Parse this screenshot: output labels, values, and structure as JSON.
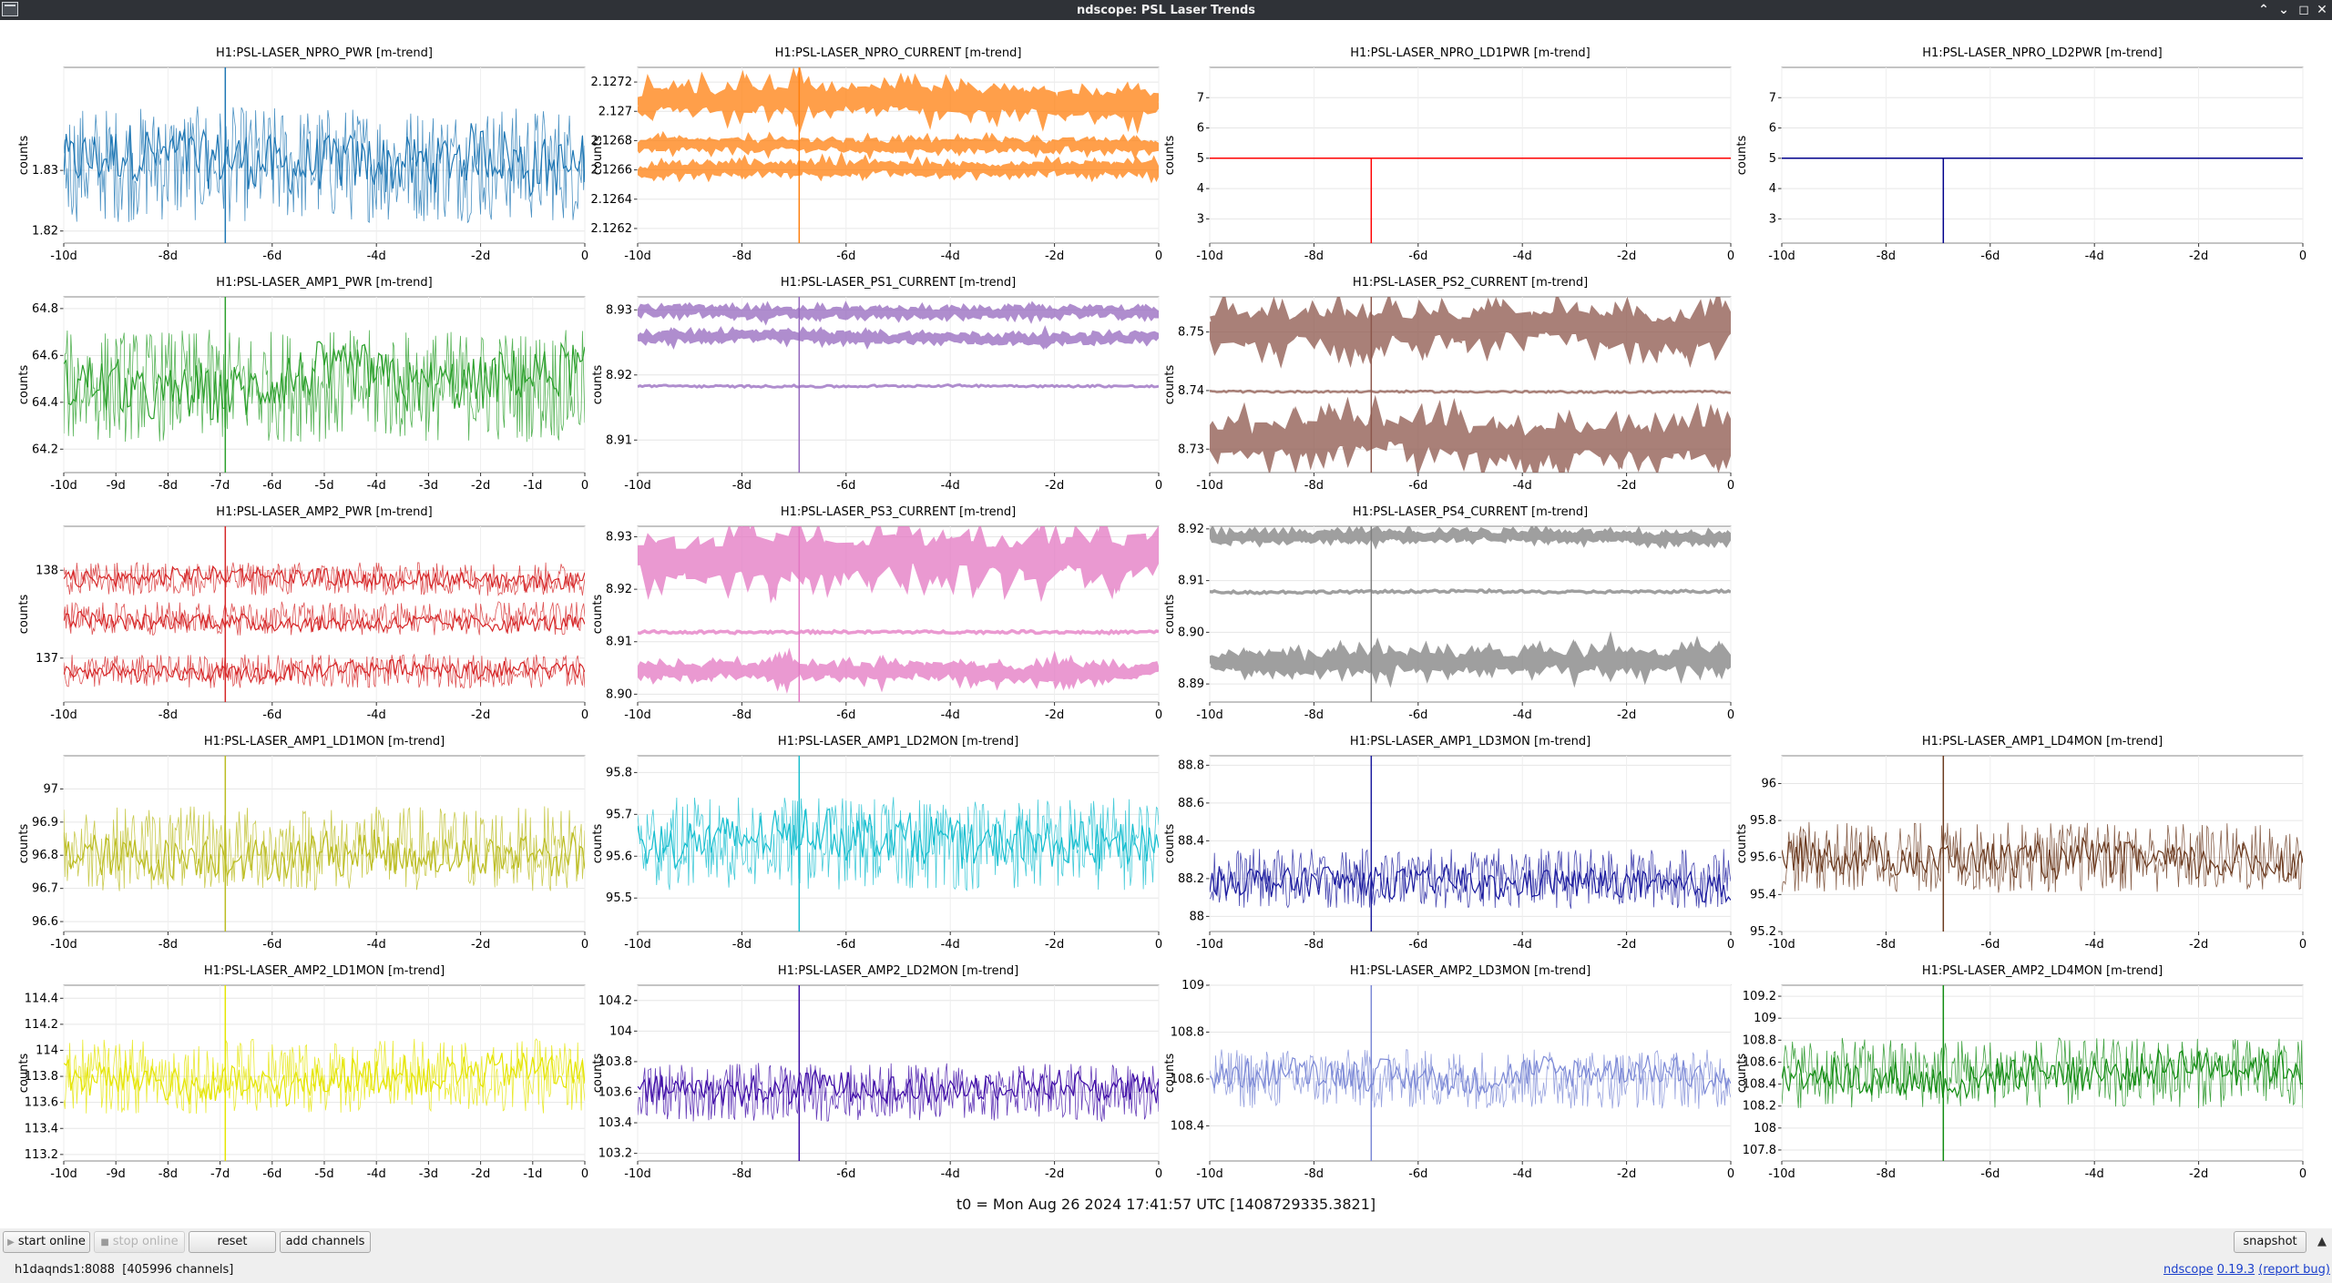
{
  "window": {
    "title": "ndscope: PSL Laser Trends"
  },
  "t0_text": "t0 = Mon Aug 26 2024 17:41:57 UTC [1408729335.3821]",
  "toolbar": {
    "start_online": "start online",
    "stop_online": "stop online",
    "reset": "reset",
    "add_channels": "add channels",
    "snapshot": "snapshot"
  },
  "status": {
    "server": "h1daqnds1:8088",
    "channels": "[405996 channels]",
    "app_name": "ndscope",
    "version": "0.19.3",
    "report_bug": "(report bug)"
  },
  "icons": [
    "app-menu-icon",
    "minimize-icon",
    "restore-icon",
    "maximize-icon",
    "close-icon",
    "play-icon",
    "stop-icon",
    "collapse-up-icon"
  ],
  "chart_data": [
    {
      "type": "line",
      "title": "H1:PSL-LASER_NPRO_PWR [m-trend]",
      "ylabel": "counts",
      "color": "#1f77b4",
      "style": "noise",
      "ylim": [
        1.818,
        1.847
      ],
      "yticks": [
        "1.82",
        "1.83"
      ],
      "xticks": [
        "-10d",
        "-8d",
        "-6d",
        "-4d",
        "-2d",
        "0"
      ],
      "series": [
        {
          "mean": 1.831,
          "spread": 0.006
        }
      ]
    },
    {
      "type": "line",
      "title": "H1:PSL-LASER_NPRO_CURRENT [m-trend]",
      "ylabel": "counts",
      "color": "#ff7f0e",
      "style": "bands",
      "ylim": [
        2.1261,
        2.1273
      ],
      "yticks": [
        "2.1262",
        "2.1264",
        "2.1266",
        "2.1268",
        "2.127",
        "2.1272"
      ],
      "xticks": [
        "-10d",
        "-8d",
        "-6d",
        "-4d",
        "-2d",
        "0"
      ],
      "series": [
        {
          "mean": 2.12707,
          "spread": 5e-05
        },
        {
          "mean": 2.12678,
          "spread": 3e-05
        },
        {
          "mean": 2.1266,
          "spread": 3e-05
        }
      ]
    },
    {
      "type": "line",
      "title": "H1:PSL-LASER_NPRO_LD1PWR [m-trend]",
      "ylabel": "counts",
      "color": "#ff0000",
      "style": "flat",
      "ylim": [
        2.2,
        8
      ],
      "yticks": [
        "3",
        "4",
        "5",
        "6",
        "7"
      ],
      "xticks": [
        "-10d",
        "-8d",
        "-6d",
        "-4d",
        "-2d",
        "0"
      ],
      "series": [
        {
          "mean": 5,
          "spread": 0
        }
      ]
    },
    {
      "type": "line",
      "title": "H1:PSL-LASER_NPRO_LD2PWR [m-trend]",
      "ylabel": "counts",
      "color": "#00008b",
      "style": "flat",
      "ylim": [
        2.2,
        8
      ],
      "yticks": [
        "3",
        "4",
        "5",
        "6",
        "7"
      ],
      "xticks": [
        "-10d",
        "-8d",
        "-6d",
        "-4d",
        "-2d",
        "0"
      ],
      "series": [
        {
          "mean": 5,
          "spread": 0
        }
      ]
    },
    {
      "type": "line",
      "title": "H1:PSL-LASER_AMP1_PWR [m-trend]",
      "ylabel": "counts",
      "color": "#2ca02c",
      "style": "noise",
      "ylim": [
        64.1,
        64.85
      ],
      "yticks": [
        "64.2",
        "64.4",
        "64.6",
        "64.8"
      ],
      "xticks": [
        "-10d",
        "-9d",
        "-8d",
        "-7d",
        "-6d",
        "-5d",
        "-4d",
        "-3d",
        "-2d",
        "-1d",
        "0"
      ],
      "series": [
        {
          "mean": 64.47,
          "spread": 0.15
        }
      ]
    },
    {
      "type": "line",
      "title": "H1:PSL-LASER_PS1_CURRENT [m-trend]",
      "ylabel": "counts",
      "color": "#9467bd",
      "style": "bands",
      "ylim": [
        8.905,
        8.932
      ],
      "yticks": [
        "8.91",
        "8.92",
        "8.93"
      ],
      "xticks": [
        "-10d",
        "-8d",
        "-6d",
        "-4d",
        "-2d",
        "0"
      ],
      "series": [
        {
          "mean": 8.9298,
          "spread": 0.0006
        },
        {
          "mean": 8.9258,
          "spread": 0.0006
        },
        {
          "mean": 8.9183,
          "spread": 0.0002
        }
      ]
    },
    {
      "type": "line",
      "title": "H1:PSL-LASER_PS2_CURRENT [m-trend]",
      "ylabel": "counts",
      "color": "#8c564b",
      "style": "bands",
      "ylim": [
        8.726,
        8.756
      ],
      "yticks": [
        "8.73",
        "8.74",
        "8.75"
      ],
      "xticks": [
        "-10d",
        "-8d",
        "-6d",
        "-4d",
        "-2d",
        "0"
      ],
      "series": [
        {
          "mean": 8.7508,
          "spread": 0.0015
        },
        {
          "mean": 8.7398,
          "spread": 0.0002
        },
        {
          "mean": 8.7318,
          "spread": 0.0015
        }
      ]
    },
    {
      "type": "line",
      "title": "H1:PSL-LASER_AMP2_PWR [m-trend]",
      "ylabel": "counts",
      "color": "#d62728",
      "style": "noise",
      "ylim": [
        136.5,
        138.5
      ],
      "yticks": [
        "137",
        "138"
      ],
      "xticks": [
        "-10d",
        "-8d",
        "-6d",
        "-4d",
        "-2d",
        "0"
      ],
      "series": [
        {
          "mean": 137.9,
          "spread": 0.12
        },
        {
          "mean": 137.45,
          "spread": 0.12
        },
        {
          "mean": 136.85,
          "spread": 0.12
        }
      ]
    },
    {
      "type": "line",
      "title": "H1:PSL-LASER_PS3_CURRENT [m-trend]",
      "ylabel": "counts",
      "color": "#e377c2",
      "style": "bands",
      "ylim": [
        8.8985,
        8.932
      ],
      "yticks": [
        "8.90",
        "8.91",
        "8.92",
        "8.93"
      ],
      "xticks": [
        "-10d",
        "-8d",
        "-6d",
        "-4d",
        "-2d",
        "0"
      ],
      "series": [
        {
          "mean": 8.9265,
          "spread": 0.0025
        },
        {
          "mean": 8.9118,
          "spread": 0.0003
        },
        {
          "mean": 8.9045,
          "spread": 0.001
        }
      ]
    },
    {
      "type": "line",
      "title": "H1:PSL-LASER_PS4_CURRENT [m-trend]",
      "ylabel": "counts",
      "color": "#7f7f7f",
      "style": "bands",
      "ylim": [
        8.8865,
        8.9205
      ],
      "yticks": [
        "8.89",
        "8.90",
        "8.91",
        "8.92"
      ],
      "xticks": [
        "-10d",
        "-8d",
        "-6d",
        "-4d",
        "-2d",
        "0"
      ],
      "series": [
        {
          "mean": 8.9185,
          "spread": 0.0008
        },
        {
          "mean": 8.9078,
          "spread": 0.0003
        },
        {
          "mean": 8.8945,
          "spread": 0.0012
        }
      ]
    },
    {
      "type": "line",
      "title": "H1:PSL-LASER_AMP1_LD1MON [m-trend]",
      "ylabel": "counts",
      "color": "#bcbd22",
      "style": "noise",
      "ylim": [
        96.57,
        97.1
      ],
      "yticks": [
        "96.6",
        "96.7",
        "96.8",
        "96.9",
        "97"
      ],
      "xticks": [
        "-10d",
        "-8d",
        "-6d",
        "-4d",
        "-2d",
        "0"
      ],
      "series": [
        {
          "mean": 96.82,
          "spread": 0.08
        }
      ]
    },
    {
      "type": "line",
      "title": "H1:PSL-LASER_AMP1_LD2MON [m-trend]",
      "ylabel": "counts",
      "color": "#17becf",
      "style": "noise",
      "ylim": [
        95.42,
        95.84
      ],
      "yticks": [
        "95.5",
        "95.6",
        "95.7",
        "95.8"
      ],
      "xticks": [
        "-10d",
        "-8d",
        "-6d",
        "-4d",
        "-2d",
        "0"
      ],
      "series": [
        {
          "mean": 95.63,
          "spread": 0.07
        }
      ]
    },
    {
      "type": "line",
      "title": "H1:PSL-LASER_AMP1_LD3MON [m-trend]",
      "ylabel": "counts",
      "color": "#1a1a9e",
      "style": "noise",
      "ylim": [
        87.92,
        88.85
      ],
      "yticks": [
        "88",
        "88.2",
        "88.4",
        "88.6",
        "88.8"
      ],
      "xticks": [
        "-10d",
        "-8d",
        "-6d",
        "-4d",
        "-2d",
        "0"
      ],
      "series": [
        {
          "mean": 88.2,
          "spread": 0.1
        }
      ]
    },
    {
      "type": "line",
      "title": "H1:PSL-LASER_AMP1_LD4MON [m-trend]",
      "ylabel": "counts",
      "color": "#6b3a1e",
      "style": "noise",
      "ylim": [
        95.2,
        96.15
      ],
      "yticks": [
        "95.2",
        "95.4",
        "95.6",
        "95.8",
        "96"
      ],
      "xticks": [
        "-10d",
        "-8d",
        "-6d",
        "-4d",
        "-2d",
        "0"
      ],
      "series": [
        {
          "mean": 95.6,
          "spread": 0.12
        }
      ]
    },
    {
      "type": "line",
      "title": "H1:PSL-LASER_AMP2_LD1MON [m-trend]",
      "ylabel": "counts",
      "color": "#e5e500",
      "style": "noise",
      "ylim": [
        113.15,
        114.5
      ],
      "yticks": [
        "113.2",
        "113.4",
        "113.6",
        "113.8",
        "114",
        "114.2",
        "114.4"
      ],
      "xticks": [
        "-10d",
        "-9d",
        "-8d",
        "-7d",
        "-6d",
        "-5d",
        "-4d",
        "-3d",
        "-2d",
        "-1d",
        "0"
      ],
      "series": [
        {
          "mean": 113.8,
          "spread": 0.18
        }
      ]
    },
    {
      "type": "line",
      "title": "H1:PSL-LASER_AMP2_LD2MON [m-trend]",
      "ylabel": "counts",
      "color": "#3d0aa6",
      "style": "noise",
      "ylim": [
        103.15,
        104.3
      ],
      "yticks": [
        "103.2",
        "103.4",
        "103.6",
        "103.8",
        "104",
        "104.2"
      ],
      "xticks": [
        "-10d",
        "-8d",
        "-6d",
        "-4d",
        "-2d",
        "0"
      ],
      "series": [
        {
          "mean": 103.6,
          "spread": 0.12
        }
      ]
    },
    {
      "type": "line",
      "title": "H1:PSL-LASER_AMP2_LD3MON [m-trend]",
      "ylabel": "counts",
      "color": "#7b88d6",
      "style": "noise",
      "ylim": [
        108.25,
        109.0
      ],
      "yticks": [
        "108.4",
        "108.6",
        "108.8",
        "109"
      ],
      "xticks": [
        "-10d",
        "-8d",
        "-6d",
        "-4d",
        "-2d",
        "0"
      ],
      "series": [
        {
          "mean": 108.6,
          "spread": 0.08
        }
      ]
    },
    {
      "type": "line",
      "title": "H1:PSL-LASER_AMP2_LD4MON [m-trend]",
      "ylabel": "counts",
      "color": "#128c12",
      "style": "noise",
      "ylim": [
        107.7,
        109.3
      ],
      "yticks": [
        "107.8",
        "108",
        "108.2",
        "108.4",
        "108.6",
        "108.8",
        "109",
        "109.2"
      ],
      "xticks": [
        "-10d",
        "-8d",
        "-6d",
        "-4d",
        "-2d",
        "0"
      ],
      "series": [
        {
          "mean": 108.5,
          "spread": 0.2
        }
      ]
    }
  ]
}
